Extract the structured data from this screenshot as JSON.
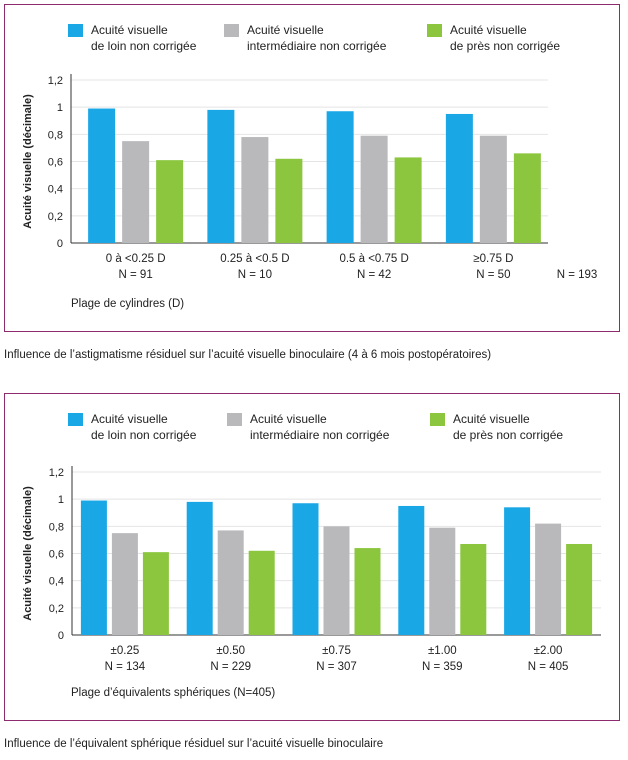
{
  "colors": {
    "distance": "#1aa7e6",
    "intermediate": "#b9b9bc",
    "near": "#8cc63f",
    "frame": "#8e2a6e"
  },
  "charts": [
    {
      "chart_data": {
        "type": "bar",
        "legend": [
          [
            "Acuité visuelle",
            "de loin non corrigée"
          ],
          [
            "Acuité visuelle",
            "intermédiaire non corrigée"
          ],
          [
            "Acuité visuelle",
            "de près non corrigée"
          ]
        ],
        "ylabel": "Acuité visuelle (décimale)",
        "xlabel": "Plage de cylindres (D)",
        "yticks": [
          "0",
          "0,2",
          "0,4",
          "0,6",
          "0,8",
          "1",
          "1,2"
        ],
        "ylim": [
          0,
          1.2
        ],
        "categories": [
          "0 à <0.25 D",
          "0.25 à <0.5 D",
          "0.5 à <0.75 D",
          "≥0.75 D"
        ],
        "n_labels": [
          "N = 91",
          "N = 10",
          "N = 42",
          "N = 50"
        ],
        "total_label": "N = 193",
        "series": [
          {
            "name": "Acuité visuelle de loin non corrigée",
            "values": [
              0.99,
              0.98,
              0.97,
              0.95
            ]
          },
          {
            "name": "Acuité visuelle intermédiaire non corrigée",
            "values": [
              0.75,
              0.78,
              0.79,
              0.79
            ]
          },
          {
            "name": "Acuité visuelle de près non corrigée",
            "values": [
              0.61,
              0.62,
              0.63,
              0.66
            ]
          }
        ]
      },
      "caption": "Influence de l’astigmatisme résiduel sur l’acuité visuelle binoculaire (4 à 6 mois postopératoires)"
    },
    {
      "chart_data": {
        "type": "bar",
        "legend": [
          [
            "Acuité visuelle",
            "de loin non corrigée"
          ],
          [
            "Acuité visuelle",
            "intermédiaire non corrigée"
          ],
          [
            "Acuité visuelle",
            "de près non corrigée"
          ]
        ],
        "ylabel": "Acuité visuelle (décimale)",
        "xlabel": "Plage d’équivalents sphériques (N=405)",
        "yticks": [
          "0",
          "0,2",
          "0,4",
          "0,6",
          "0,8",
          "1",
          "1,2"
        ],
        "ylim": [
          0,
          1.2
        ],
        "categories": [
          "±0.25",
          "±0.50",
          "±0.75",
          "±1.00",
          "±2.00"
        ],
        "n_labels": [
          "N = 134",
          "N = 229",
          "N = 307",
          "N = 359",
          "N = 405"
        ],
        "total_label": "",
        "series": [
          {
            "name": "Acuité visuelle de loin non corrigée",
            "values": [
              0.99,
              0.98,
              0.97,
              0.95,
              0.94
            ]
          },
          {
            "name": "Acuité visuelle intermédiaire non corrigée",
            "values": [
              0.75,
              0.77,
              0.8,
              0.79,
              0.82
            ]
          },
          {
            "name": "Acuité visuelle de près non corrigée",
            "values": [
              0.61,
              0.62,
              0.64,
              0.67,
              0.67
            ]
          }
        ]
      },
      "caption": "Influence de l’équivalent sphérique résiduel sur l’acuité visuelle binoculaire"
    }
  ]
}
